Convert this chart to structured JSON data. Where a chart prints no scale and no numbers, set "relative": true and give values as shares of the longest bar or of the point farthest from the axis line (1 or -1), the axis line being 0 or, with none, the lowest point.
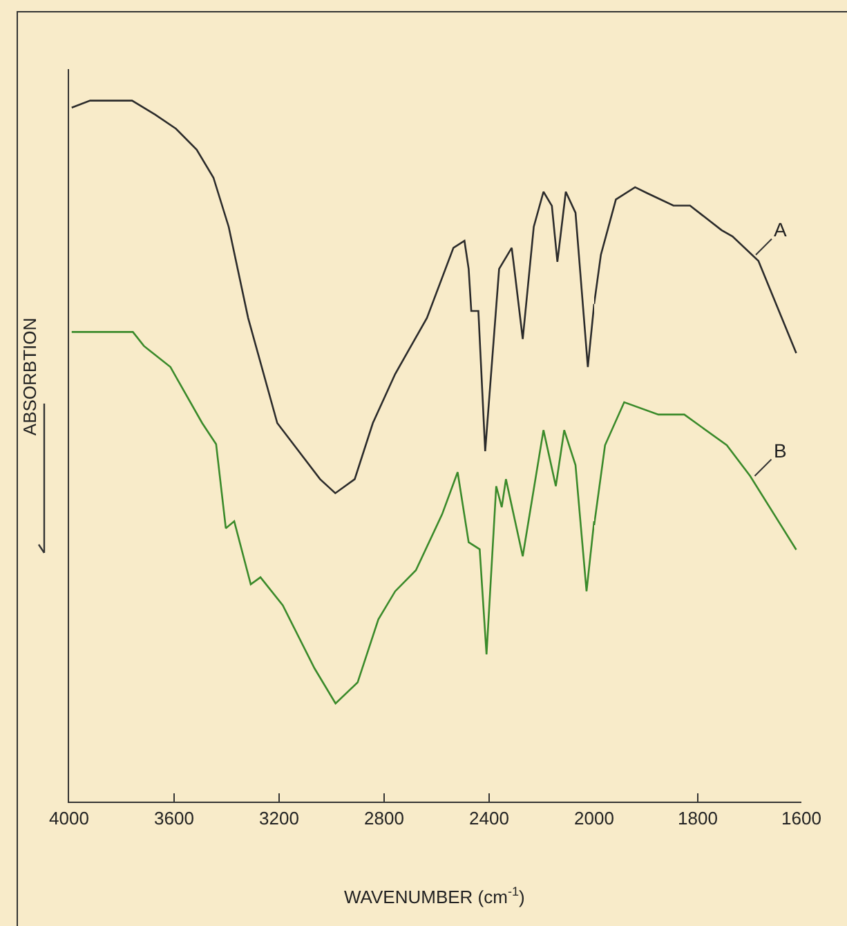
{
  "chart_data": [
    {
      "type": "line",
      "xlabel": "WAVENUMBER (cm$^{-1}$)",
      "ylabel": "ABSORBTION",
      "relative": true,
      "grid": false,
      "xlim": [
        4000,
        2000
      ],
      "xticks": [
        4000,
        3600,
        3200,
        2800,
        2400,
        2000
      ],
      "series": [
        {
          "color": "#2b2b2b",
          "x": [
            3990,
            3920,
            3760,
            3672,
            3593,
            3514,
            3450,
            3392,
            3318,
            3207,
            3044,
            2986,
            2912,
            2843,
            2758,
            2637,
            2536,
            2494,
            2478,
            2468,
            2441,
            2415,
            2362,
            2314,
            2304,
            2272,
            2230,
            2193,
            2161,
            2140,
            2108,
            2071,
            2024,
            2000
          ],
          "values": [
            0.99,
            1.0,
            1.0,
            0.98,
            0.96,
            0.93,
            0.89,
            0.82,
            0.69,
            0.54,
            0.46,
            0.44,
            0.46,
            0.54,
            0.61,
            0.69,
            0.79,
            0.8,
            0.76,
            0.7,
            0.7,
            0.5,
            0.76,
            0.79,
            0.76,
            0.66,
            0.82,
            0.87,
            0.85,
            0.77,
            0.87,
            0.84,
            0.62,
            0.71
          ]
        },
        {
          "color": "#3a8a2a",
          "x": [
            3990,
            3757,
            3715,
            3614,
            3493,
            3440,
            3403,
            3371,
            3308,
            3271,
            3186,
            3065,
            2985,
            2901,
            2822,
            2758,
            2679,
            2579,
            2520,
            2478,
            2436,
            2410,
            2373,
            2352,
            2336,
            2272,
            2193,
            2146,
            2114,
            2071,
            2029,
            2000
          ],
          "values": [
            0.67,
            0.67,
            0.65,
            0.62,
            0.54,
            0.51,
            0.39,
            0.4,
            0.31,
            0.32,
            0.28,
            0.19,
            0.14,
            0.17,
            0.26,
            0.3,
            0.33,
            0.41,
            0.47,
            0.37,
            0.36,
            0.21,
            0.45,
            0.42,
            0.46,
            0.35,
            0.53,
            0.45,
            0.53,
            0.48,
            0.3,
            0.4
          ]
        }
      ]
    },
    {
      "type": "line",
      "relative": true,
      "tick_labels": "x",
      "grid": false,
      "xlim": [
        2000,
        1600
      ],
      "xticks": [
        1800,
        1600
      ],
      "series": [
        {
          "color": "#2b2b2b",
          "x": [
            2000,
            1987,
            1958,
            1921,
            1897,
            1847,
            1815,
            1754,
            1733,
            1683,
            1610
          ],
          "values": [
            0.81,
            0.89,
            0.98,
            1.0,
            0.99,
            0.97,
            0.97,
            0.93,
            0.92,
            0.88,
            0.73
          ]
        },
        {
          "color": "#3a8a2a",
          "x": [
            2000,
            1979,
            1942,
            1876,
            1826,
            1744,
            1699,
            1610
          ],
          "values": [
            0.45,
            0.58,
            0.65,
            0.63,
            0.63,
            0.58,
            0.53,
            0.41
          ]
        }
      ],
      "annotations": [
        {
          "text": "A",
          "x": 1688,
          "y": 0.89
        },
        {
          "text": "B",
          "x": 1690,
          "y": 0.53
        }
      ]
    }
  ]
}
